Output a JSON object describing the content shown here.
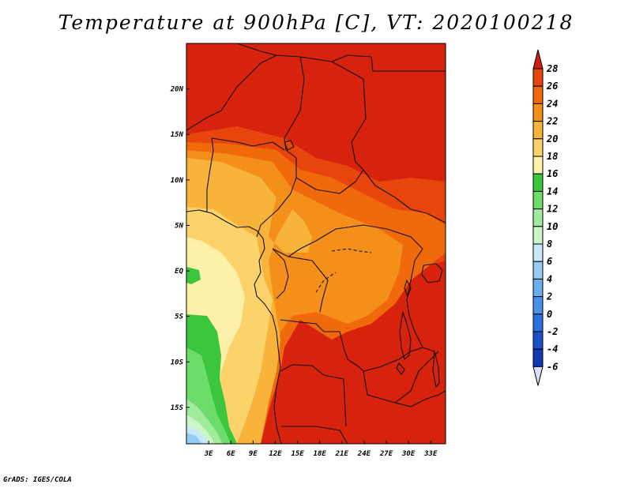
{
  "title": "Temperature at 900hPa [C], VT: 2020100218",
  "credit": "GrADS: IGES/COLA",
  "map": {
    "lon_range": [
      0,
      35
    ],
    "lat_range": [
      -19,
      25
    ],
    "lon_ticks": [
      "3E",
      "6E",
      "9E",
      "12E",
      "15E",
      "18E",
      "21E",
      "24E",
      "27E",
      "30E",
      "33E"
    ],
    "lat_ticks": [
      "20N",
      "15N",
      "10N",
      "5N",
      "EQ",
      "5S",
      "10S",
      "15S"
    ]
  },
  "colorbar": {
    "labels": [
      "28",
      "26",
      "24",
      "22",
      "20",
      "18",
      "16",
      "14",
      "12",
      "10",
      "8",
      "6",
      "4",
      "2",
      "0",
      "-2",
      "-4",
      "-6"
    ],
    "colors": [
      "#d7220d",
      "#e8450c",
      "#f06a0c",
      "#f4901a",
      "#f8b33a",
      "#fbd36a",
      "#fdf0a8",
      "#3cc63e",
      "#6cdc6a",
      "#a0ec9c",
      "#cdf6c8",
      "#c6e8f8",
      "#96ccf4",
      "#6aaef0",
      "#4a90e8",
      "#2a70dc",
      "#1a50c8",
      "#103ab0",
      "#0c1a80"
    ],
    "top_arrow_color": "#d11e0e",
    "bottom_arrow_color": "#d8e0fc"
  },
  "palette": {
    "t28": "#d7220d",
    "t26": "#e8450c",
    "t24": "#f06a0c",
    "t22": "#f4901a",
    "t20": "#f8b33a",
    "t18": "#fbd36a",
    "t16": "#fdf0a8",
    "t14": "#3cc63e",
    "t12": "#6cdc6a",
    "t10": "#a0ec9c",
    "t8": "#cdf6c8",
    "t6": "#c6e8f8",
    "t4": "#96ccf4"
  }
}
